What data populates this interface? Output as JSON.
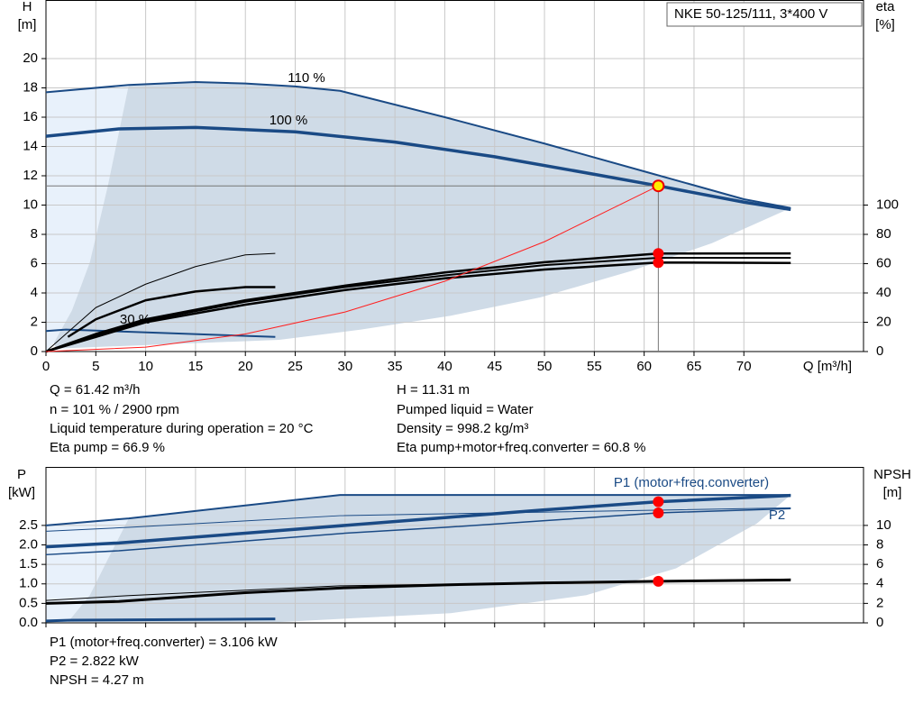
{
  "chart_data": [
    {
      "type": "line",
      "title": "NKE 50-125/111, 3*400 V",
      "ylabel": "H",
      "yunit": "[m]",
      "y2label": "eta",
      "y2unit": "[%]",
      "xlabel": "Q [m³/h]",
      "xlim": [
        0,
        82
      ],
      "xticks": [
        0,
        5,
        10,
        15,
        20,
        25,
        30,
        35,
        40,
        45,
        50,
        55,
        60,
        65,
        70
      ],
      "ylim": [
        0,
        24
      ],
      "yticks": [
        0,
        2,
        4,
        6,
        8,
        10,
        12,
        14,
        16,
        18,
        20
      ],
      "y2lim": [
        0,
        240
      ],
      "y2ticks": [
        0,
        20,
        40,
        60,
        80,
        100
      ],
      "grid": true,
      "areas": [
        {
          "color": "#e8f1fb",
          "x": [
            0,
            8.3,
            6.2,
            4.4,
            2.6,
            0.8,
            0
          ],
          "values": [
            17.7,
            18.2,
            11.3,
            6.1,
            2.8,
            0.6,
            0
          ]
        },
        {
          "color": "#cfdbe7",
          "x": [
            8.3,
            15,
            20,
            25,
            29.5,
            40,
            50,
            60,
            70,
            74.7,
            66.8,
            58.7,
            49.6,
            40.6,
            31.6,
            23.4,
            1,
            0.8,
            2.6,
            4.4,
            6.2
          ],
          "values": [
            18.2,
            18.4,
            18.3,
            18.1,
            17.8,
            16.0,
            14.2,
            12.3,
            10.4,
            9.8,
            7.4,
            5.5,
            3.7,
            2.45,
            1.5,
            0.8,
            0.2,
            0.6,
            2.8,
            6.1,
            11.3
          ]
        }
      ],
      "series": [
        {
          "label": "110 %",
          "color": "#1a4a85",
          "width": 2,
          "x": [
            0,
            8.3,
            15,
            20,
            25,
            29.5,
            40,
            50,
            60,
            70,
            74.7
          ],
          "values": [
            17.7,
            18.2,
            18.4,
            18.3,
            18.1,
            17.8,
            16.0,
            14.2,
            12.3,
            10.4,
            9.8
          ]
        },
        {
          "label": "100 %",
          "color": "#1a4a85",
          "width": 3.5,
          "x": [
            0,
            7.3,
            15,
            25,
            35,
            45,
            55,
            61.42,
            70,
            74.7
          ],
          "values": [
            14.7,
            15.2,
            15.3,
            15.0,
            14.3,
            13.3,
            12.1,
            11.31,
            10.2,
            9.7
          ]
        },
        {
          "label": "30 %",
          "color": "#1a4a85",
          "width": 2,
          "x": [
            0,
            2,
            23
          ],
          "values": [
            1.4,
            1.5,
            1.0
          ]
        },
        {
          "axis": "y2",
          "color": "#000000",
          "width": 2.5,
          "x": [
            0,
            5,
            10,
            20,
            30,
            40,
            50,
            61.42,
            74.7
          ],
          "values": [
            0,
            12,
            22,
            35,
            45,
            54,
            61,
            66.9,
            67
          ]
        },
        {
          "axis": "y2",
          "color": "#000000",
          "width": 2,
          "x": [
            0,
            5,
            10,
            20,
            30,
            40,
            50,
            61.42,
            74.7
          ],
          "values": [
            0,
            11,
            21,
            34,
            44,
            52,
            59,
            64,
            64
          ]
        },
        {
          "axis": "y2",
          "color": "#000000",
          "width": 2.5,
          "x": [
            0,
            5,
            10,
            20,
            30,
            40,
            50,
            61.42,
            74.7
          ],
          "values": [
            0,
            10,
            20,
            32,
            42,
            50,
            56,
            60.8,
            60.5
          ]
        },
        {
          "axis": "y2",
          "color": "#000000",
          "width": 2.5,
          "x": [
            2.2,
            5,
            10,
            15,
            20,
            23
          ],
          "values": [
            10,
            22,
            35,
            41,
            44,
            44
          ]
        },
        {
          "axis": "y2",
          "color": "#000000",
          "width": 1,
          "x": [
            0,
            5,
            10,
            15,
            20,
            23
          ],
          "values": [
            0,
            30,
            46,
            58,
            66,
            67
          ]
        },
        {
          "color": "#ff2020",
          "width": 1,
          "x": [
            0,
            10,
            20,
            30,
            40,
            50,
            61.42
          ],
          "values": [
            0,
            0.3,
            1.2,
            2.7,
            4.8,
            7.5,
            11.31
          ]
        }
      ],
      "points": [
        {
          "x": 61.42,
          "y": 11.31,
          "color": "#ffee00",
          "guides": true
        },
        {
          "x": 61.42,
          "y": 66.9,
          "axis": "y2",
          "color": "#ff0000"
        },
        {
          "x": 61.42,
          "y": 60.8,
          "axis": "y2",
          "color": "#ff0000"
        }
      ]
    },
    {
      "type": "line",
      "ylabel": "P",
      "yunit": "[kW]",
      "y2label": "NPSH",
      "y2unit": "[m]",
      "xlim": [
        0,
        82
      ],
      "ylim": [
        0,
        4
      ],
      "yticks": [
        {
          "value": 0,
          "label": "0.0"
        },
        0.5,
        {
          "value": 1,
          "label": "1.0"
        },
        1.5,
        {
          "value": 2,
          "label": "2.0"
        },
        2.5
      ],
      "y2lim": [
        0,
        16
      ],
      "y2ticks": [
        0,
        2,
        4,
        6,
        8,
        10
      ],
      "grid": true,
      "areas": [
        {
          "color": "#e8f1fb",
          "x": [
            0,
            8.3,
            6.2,
            4.4,
            2.2,
            0
          ],
          "values": [
            2.5,
            2.68,
            1.63,
            0.71,
            0.02,
            0
          ]
        },
        {
          "color": "#cfdbe7",
          "x": [
            8.3,
            29.5,
            74.7,
            71.3,
            63.2,
            54.2,
            40.6,
            23.4,
            2.2,
            4.4,
            6.2
          ],
          "values": [
            2.68,
            3.28,
            3.28,
            2.55,
            1.4,
            0.71,
            0.25,
            0.02,
            0.02,
            0.71,
            1.63
          ]
        }
      ],
      "series": [
        {
          "label": "P1 (motor+freq.converter)",
          "color": "#1a4a85",
          "width": 3.5,
          "x": [
            0,
            7.3,
            20,
            30,
            40,
            50,
            61.42,
            74.7
          ],
          "values": [
            1.95,
            2.05,
            2.3,
            2.5,
            2.7,
            2.9,
            3.106,
            3.27
          ]
        },
        {
          "color": "#1a4a85",
          "width": 2,
          "x": [
            0,
            8.3,
            29.5,
            74.7
          ],
          "values": [
            2.5,
            2.68,
            3.28,
            3.28
          ]
        },
        {
          "label": "P2",
          "color": "#1a4a85",
          "width": 1.5,
          "x": [
            0,
            7.3,
            20,
            30,
            40,
            50,
            61.42,
            74.7
          ],
          "values": [
            1.75,
            1.85,
            2.1,
            2.3,
            2.45,
            2.62,
            2.822,
            2.93
          ]
        },
        {
          "color": "#1a4a85",
          "width": 1,
          "x": [
            0,
            8.3,
            29.5,
            74.7
          ],
          "values": [
            2.35,
            2.45,
            2.75,
            2.95
          ]
        },
        {
          "color": "#1a4a85",
          "width": 3,
          "x": [
            0,
            2.5,
            23
          ],
          "values": [
            0.05,
            0.07,
            0.1
          ]
        },
        {
          "axis": "y2",
          "color": "#000000",
          "width": 3,
          "x": [
            0,
            7.3,
            20,
            30,
            40,
            50,
            61.42,
            74.7
          ],
          "values": [
            2.0,
            2.2,
            3.1,
            3.6,
            3.9,
            4.1,
            4.27,
            4.4
          ]
        },
        {
          "axis": "y2",
          "color": "#000000",
          "width": 1,
          "x": [
            0,
            8.3,
            29.5,
            74.7
          ],
          "values": [
            2.3,
            2.8,
            3.8,
            4.5
          ]
        }
      ],
      "points": [
        {
          "x": 61.42,
          "y": 3.106,
          "color": "#ff0000"
        },
        {
          "x": 61.42,
          "y": 2.822,
          "color": "#ff0000"
        },
        {
          "x": 61.42,
          "y": 4.27,
          "axis": "y2",
          "color": "#ff0000"
        }
      ]
    }
  ],
  "operating_info": [
    [
      "Q = 61.42 m³/h",
      "H = 11.31 m"
    ],
    [
      "n = 101 % / 2900 rpm",
      "Pumped liquid = Water"
    ],
    [
      "Liquid temperature during operation = 20 °C",
      "Density = 998.2 kg/m³"
    ],
    [
      "Eta pump = 66.9 %",
      "Eta pump+motor+freq.converter = 60.8 %"
    ]
  ],
  "power_info": [
    "P1 (motor+freq.converter) = 3.106 kW",
    "P2 = 2.822 kW",
    "NPSH = 4.27 m"
  ]
}
